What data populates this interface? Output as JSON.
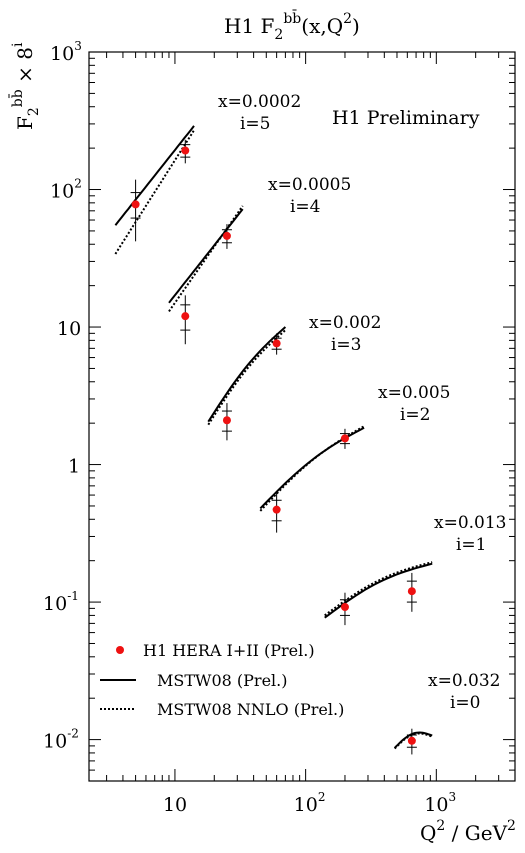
{
  "chart_data": {
    "type": "scatter",
    "title": {
      "prefix": "H1 F",
      "sub": "2",
      "sup": "bb̄",
      "suffix": "(x,Q",
      "sup2": "2",
      "end": ")"
    },
    "ylabel": {
      "main": "F",
      "sub": "2",
      "sup": "bb̄",
      "mid": " × 8",
      "sup2": "i"
    },
    "xlabel": {
      "main": "Q",
      "sup": "2",
      "mid": " / GeV",
      "sup2": "2"
    },
    "annotation_main": "H1 Preliminary",
    "x_scale": "log",
    "y_scale": "log",
    "xlim": [
      2.2,
      4000
    ],
    "ylim": [
      0.005,
      1000
    ],
    "x_ticks": [
      {
        "value": 10,
        "label": "10",
        "exp": ""
      },
      {
        "value": 100,
        "label": "10",
        "exp": "2"
      },
      {
        "value": 1000,
        "label": "10",
        "exp": "3"
      }
    ],
    "y_ticks": [
      {
        "value": 0.01,
        "label": "10",
        "exp": "-2"
      },
      {
        "value": 0.1,
        "label": "10",
        "exp": "-1"
      },
      {
        "value": 1,
        "label": "1",
        "exp": ""
      },
      {
        "value": 10,
        "label": "10",
        "exp": ""
      },
      {
        "value": 100,
        "label": "10",
        "exp": "2"
      },
      {
        "value": 1000,
        "label": "10",
        "exp": "3"
      }
    ],
    "legend": {
      "placement": "bottom-left",
      "data_label": "H1 HERA I+II (Prel.)",
      "mstw_label": "MSTW08 (Prel.)",
      "nnlo_label": "MSTW08 NNLO (Prel.)"
    },
    "colors": {
      "data": "#ee1111",
      "line": "#000000"
    },
    "bins": [
      {
        "x_label": "x=0.0002",
        "i_label": "i=5",
        "points": [
          {
            "q2": 5,
            "y": 78,
            "err_stat": [
              62,
              95
            ],
            "err_tot": [
              42,
              118
            ]
          },
          {
            "q2": 12,
            "y": 192,
            "err_stat": [
              172,
              212
            ],
            "err_tot": [
              155,
              230
            ]
          }
        ],
        "mstw": {
          "q2": [
            3.5,
            14
          ],
          "y": [
            55,
            290
          ]
        },
        "nnlo": {
          "q2": [
            3.5,
            14
          ],
          "y": [
            34,
            270
          ]
        }
      },
      {
        "x_label": "x=0.0005",
        "i_label": "i=4",
        "points": [
          {
            "q2": 12,
            "y": 12,
            "err_stat": [
              9.5,
              14.5
            ],
            "err_tot": [
              7.5,
              17
            ]
          },
          {
            "q2": 25,
            "y": 46,
            "err_stat": [
              41,
              51
            ],
            "err_tot": [
              37,
              56
            ]
          }
        ],
        "mstw": {
          "q2": [
            9,
            33
          ],
          "y": [
            15,
            72
          ]
        },
        "nnlo": {
          "q2": [
            9,
            33
          ],
          "y": [
            13,
            76
          ]
        }
      },
      {
        "x_label": "x=0.002",
        "i_label": "i=3",
        "points": [
          {
            "q2": 25,
            "y": 2.1,
            "err_stat": [
              1.75,
              2.45
            ],
            "err_tot": [
              1.5,
              2.8
            ]
          },
          {
            "q2": 60,
            "y": 7.6,
            "err_stat": [
              6.9,
              8.3
            ],
            "err_tot": [
              6.3,
              9.0
            ]
          }
        ],
        "mstw": {
          "q2": [
            18,
            70
          ],
          "y": [
            2.05,
            10
          ]
        },
        "nnlo": {
          "q2": [
            18,
            70
          ],
          "y": [
            1.95,
            9.5
          ]
        }
      },
      {
        "x_label": "x=0.005",
        "i_label": "i=2",
        "points": [
          {
            "q2": 60,
            "y": 0.47,
            "err_stat": [
              0.39,
              0.55
            ],
            "err_tot": [
              0.32,
              0.64
            ]
          },
          {
            "q2": 200,
            "y": 1.55,
            "err_stat": [
              1.42,
              1.68
            ],
            "err_tot": [
              1.3,
              1.82
            ]
          }
        ],
        "mstw": {
          "q2": [
            45,
            280
          ],
          "y": [
            0.48,
            1.85
          ]
        },
        "nnlo": {
          "q2": [
            45,
            280
          ],
          "y": [
            0.46,
            1.9
          ]
        }
      },
      {
        "x_label": "x=0.013",
        "i_label": "i=1",
        "points": [
          {
            "q2": 200,
            "y": 0.092,
            "err_stat": [
              0.08,
              0.104
            ],
            "err_tot": [
              0.068,
              0.117
            ]
          },
          {
            "q2": 650,
            "y": 0.12,
            "err_stat": [
              0.1,
              0.142
            ],
            "err_tot": [
              0.085,
              0.163
            ]
          }
        ],
        "mstw": {
          "q2": [
            140,
            930
          ],
          "y": [
            0.077,
            0.19
          ]
        },
        "nnlo": {
          "q2": [
            140,
            930
          ],
          "y": [
            0.08,
            0.195
          ]
        }
      },
      {
        "x_label": "x=0.032",
        "i_label": "i=0",
        "points": [
          {
            "q2": 650,
            "y": 0.0098,
            "err_stat": [
              0.0088,
              0.0108
            ],
            "err_tot": [
              0.0078,
              0.012
            ]
          }
        ],
        "mstw": {
          "q2": [
            480,
            930
          ],
          "y": [
            0.0087,
            0.0107
          ]
        },
        "nnlo": {
          "q2": [
            480,
            930
          ],
          "y": [
            0.0086,
            0.0105
          ]
        }
      }
    ]
  }
}
